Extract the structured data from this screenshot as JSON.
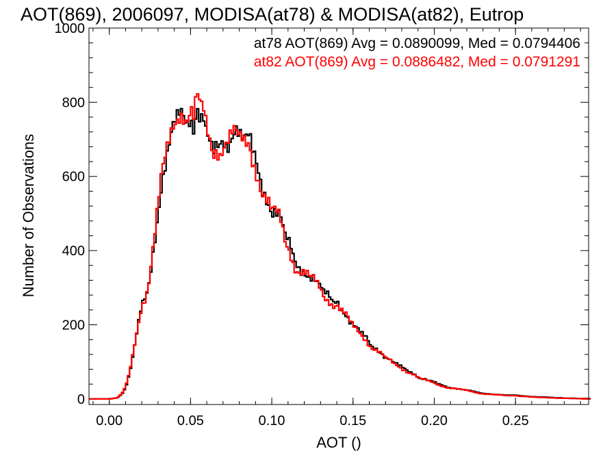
{
  "chart_data": {
    "type": "line",
    "title": "AOT(869), 2006097, MODISA(at78) & MODISA(at82), Eutrop",
    "xlabel": "AOT ()",
    "ylabel": "Number of Observations",
    "xlim": [
      -0.0125,
      0.295
    ],
    "ylim": [
      -15,
      1000
    ],
    "xticks": [
      "0.00",
      "0.05",
      "0.10",
      "0.15",
      "0.20",
      "0.25"
    ],
    "yticks": [
      "0",
      "200",
      "400",
      "600",
      "800",
      "1000"
    ],
    "bin_width": 0.00125,
    "legend": "top-right",
    "annotations": [
      {
        "text": "at78 AOT(869) Avg = 0.0890099, Med = 0.0794406",
        "color": "#000000"
      },
      {
        "text": "at82 AOT(869) Avg = 0.0886482, Med = 0.0791291",
        "color": "#ff0000"
      }
    ],
    "series": [
      {
        "name": "at78",
        "color": "#000000",
        "x": [
          -0.01,
          0.0,
          0.005,
          0.008,
          0.01,
          0.012,
          0.014,
          0.016,
          0.018,
          0.02,
          0.022,
          0.024,
          0.026,
          0.028,
          0.03,
          0.032,
          0.034,
          0.036,
          0.038,
          0.04,
          0.042,
          0.044,
          0.046,
          0.048,
          0.05,
          0.052,
          0.054,
          0.056,
          0.058,
          0.06,
          0.062,
          0.064,
          0.066,
          0.068,
          0.07,
          0.072,
          0.074,
          0.076,
          0.078,
          0.08,
          0.082,
          0.084,
          0.086,
          0.088,
          0.09,
          0.092,
          0.094,
          0.096,
          0.098,
          0.1,
          0.102,
          0.104,
          0.106,
          0.108,
          0.11,
          0.112,
          0.114,
          0.116,
          0.118,
          0.12,
          0.122,
          0.124,
          0.126,
          0.128,
          0.13,
          0.132,
          0.134,
          0.136,
          0.138,
          0.14,
          0.142,
          0.144,
          0.146,
          0.148,
          0.15,
          0.152,
          0.154,
          0.156,
          0.158,
          0.16,
          0.162,
          0.164,
          0.166,
          0.168,
          0.17,
          0.172,
          0.174,
          0.176,
          0.178,
          0.18,
          0.182,
          0.184,
          0.186,
          0.188,
          0.19,
          0.192,
          0.194,
          0.196,
          0.198,
          0.2,
          0.202,
          0.204,
          0.206,
          0.208,
          0.21,
          0.212,
          0.214,
          0.216,
          0.218,
          0.22,
          0.222,
          0.224,
          0.226,
          0.228,
          0.23,
          0.232,
          0.234,
          0.236,
          0.238,
          0.24,
          0.242,
          0.244,
          0.246,
          0.248,
          0.25,
          0.252,
          0.254,
          0.256,
          0.258,
          0.26,
          0.262,
          0.264,
          0.266,
          0.268,
          0.27,
          0.272,
          0.274,
          0.276,
          0.278,
          0.28,
          0.282,
          0.284,
          0.286,
          0.288,
          0.29,
          0.292
        ],
        "values": [
          0,
          0,
          3,
          15,
          30,
          60,
          100,
          150,
          200,
          250,
          270,
          300,
          370,
          440,
          510,
          580,
          620,
          660,
          700,
          730,
          750,
          770,
          760,
          750,
          770,
          740,
          800,
          760,
          760,
          700,
          680,
          650,
          670,
          680,
          700,
          690,
          700,
          730,
          740,
          720,
          700,
          690,
          700,
          660,
          640,
          610,
          575,
          560,
          540,
          510,
          510,
          500,
          480,
          430,
          420,
          400,
          370,
          360,
          350,
          350,
          340,
          330,
          330,
          310,
          300,
          280,
          280,
          270,
          260,
          270,
          250,
          240,
          230,
          210,
          200,
          190,
          180,
          170,
          165,
          150,
          140,
          140,
          130,
          125,
          110,
          110,
          100,
          95,
          90,
          85,
          80,
          75,
          72,
          68,
          60,
          55,
          55,
          50,
          48,
          45,
          40,
          38,
          35,
          32,
          30,
          30,
          28,
          27,
          25,
          24,
          22,
          20,
          18,
          16,
          15,
          14,
          14,
          13,
          12,
          12,
          11,
          10,
          10,
          10,
          10,
          9,
          8,
          8,
          7,
          6,
          6,
          5,
          5,
          5,
          4,
          4,
          3,
          3,
          3,
          2,
          2,
          2,
          2,
          1,
          1,
          1
        ]
      },
      {
        "name": "at82",
        "color": "#ff0000",
        "x": [
          -0.01,
          0.0,
          0.005,
          0.008,
          0.01,
          0.012,
          0.014,
          0.016,
          0.018,
          0.02,
          0.022,
          0.024,
          0.026,
          0.028,
          0.03,
          0.032,
          0.034,
          0.036,
          0.038,
          0.04,
          0.042,
          0.044,
          0.046,
          0.048,
          0.05,
          0.052,
          0.054,
          0.056,
          0.058,
          0.06,
          0.062,
          0.064,
          0.066,
          0.068,
          0.07,
          0.072,
          0.074,
          0.076,
          0.078,
          0.08,
          0.082,
          0.084,
          0.086,
          0.088,
          0.09,
          0.092,
          0.094,
          0.096,
          0.098,
          0.1,
          0.102,
          0.104,
          0.106,
          0.108,
          0.11,
          0.112,
          0.114,
          0.116,
          0.118,
          0.12,
          0.122,
          0.124,
          0.126,
          0.128,
          0.13,
          0.132,
          0.134,
          0.136,
          0.138,
          0.14,
          0.142,
          0.144,
          0.146,
          0.148,
          0.15,
          0.152,
          0.154,
          0.156,
          0.158,
          0.16,
          0.162,
          0.164,
          0.166,
          0.168,
          0.17,
          0.172,
          0.174,
          0.176,
          0.178,
          0.18,
          0.182,
          0.184,
          0.186,
          0.188,
          0.19,
          0.192,
          0.194,
          0.196,
          0.198,
          0.2,
          0.202,
          0.204,
          0.206,
          0.208,
          0.21,
          0.212,
          0.214,
          0.216,
          0.218,
          0.22,
          0.222,
          0.224,
          0.226,
          0.228,
          0.23,
          0.232,
          0.234,
          0.236,
          0.238,
          0.24,
          0.242,
          0.244,
          0.246,
          0.248,
          0.25,
          0.252,
          0.254,
          0.256,
          0.258,
          0.26,
          0.262,
          0.264,
          0.266,
          0.268,
          0.27,
          0.272,
          0.274,
          0.276,
          0.278,
          0.28,
          0.282,
          0.284,
          0.286,
          0.288,
          0.29,
          0.292
        ],
        "values": [
          0,
          0,
          3,
          16,
          32,
          62,
          105,
          155,
          205,
          255,
          275,
          310,
          380,
          450,
          520,
          590,
          630,
          670,
          710,
          740,
          760,
          780,
          770,
          760,
          790,
          760,
          820,
          780,
          770,
          720,
          690,
          660,
          680,
          670,
          690,
          700,
          710,
          720,
          710,
          690,
          690,
          680,
          690,
          650,
          630,
          600,
          565,
          550,
          530,
          500,
          500,
          490,
          470,
          425,
          410,
          390,
          360,
          350,
          345,
          345,
          335,
          320,
          320,
          305,
          295,
          275,
          270,
          265,
          255,
          260,
          245,
          235,
          225,
          205,
          195,
          185,
          178,
          168,
          160,
          148,
          138,
          135,
          128,
          120,
          108,
          105,
          98,
          92,
          88,
          82,
          78,
          72,
          70,
          65,
          58,
          53,
          52,
          48,
          46,
          43,
          39,
          36,
          34,
          31,
          29,
          29,
          27,
          26,
          24,
          23,
          21,
          19,
          17,
          15,
          14,
          13,
          13,
          12,
          11,
          11,
          10,
          9,
          9,
          9,
          9,
          8,
          7,
          7,
          6,
          5,
          5,
          4,
          4,
          4,
          3,
          3,
          3,
          2,
          2,
          2,
          2,
          1,
          1,
          1,
          1,
          0
        ]
      }
    ]
  }
}
